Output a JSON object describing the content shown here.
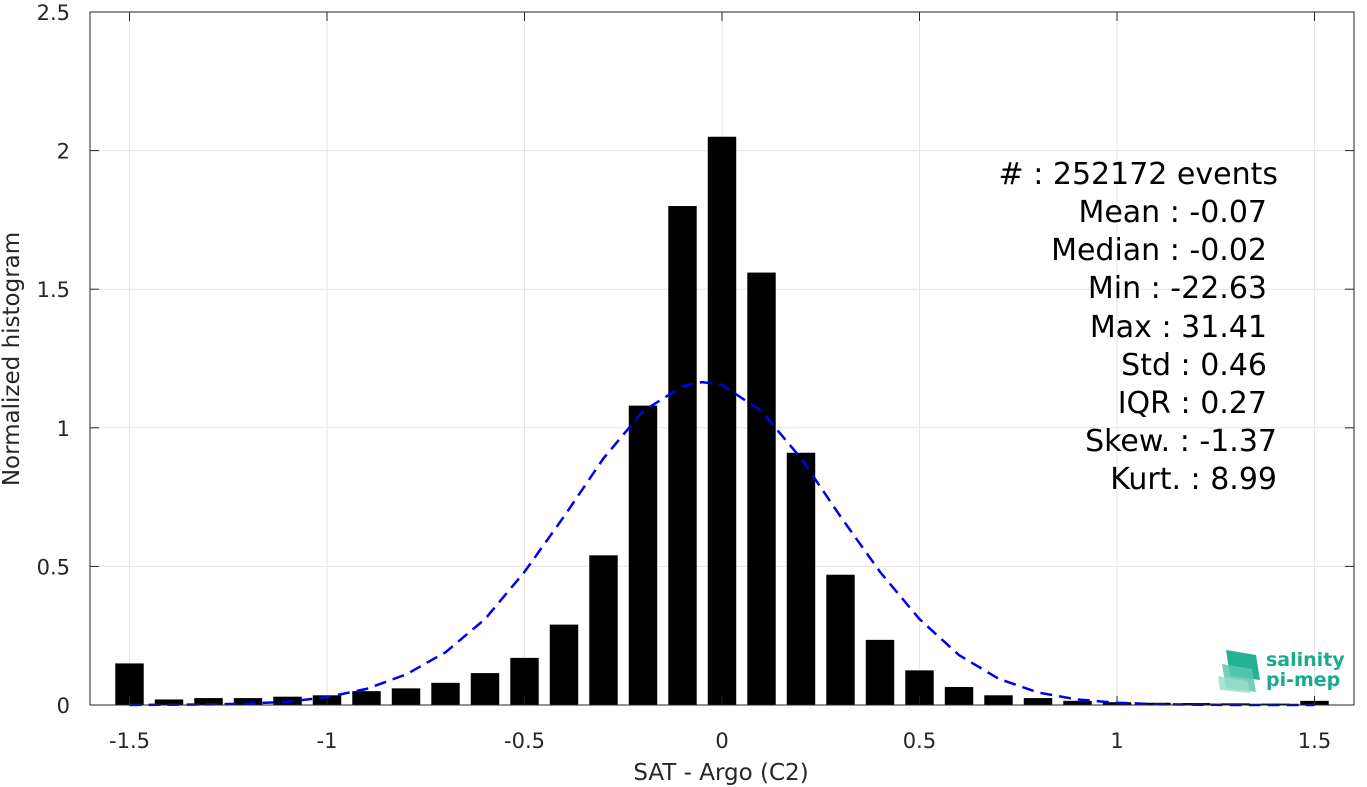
{
  "chart_data": {
    "type": "bar",
    "xlabel": "SAT - Argo (C2)",
    "ylabel": "Normalized histogram",
    "xlim": [
      -1.6,
      1.6
    ],
    "ylim": [
      0,
      2.5
    ],
    "xticks": [
      -1.5,
      -1,
      -0.5,
      0,
      0.5,
      1,
      1.5
    ],
    "xtick_labels": [
      "-1.5",
      "-1",
      "-0.5",
      "0",
      "0.5",
      "1",
      "1.5"
    ],
    "yticks": [
      0,
      0.5,
      1,
      1.5,
      2,
      2.5
    ],
    "ytick_labels": [
      "0",
      "0.5",
      "1",
      "1.5",
      "2",
      "2.5"
    ],
    "grid": true,
    "bin_width": 0.1,
    "series": [
      {
        "type": "bar",
        "color": "#000000",
        "x": [
          -1.5,
          -1.4,
          -1.3,
          -1.2,
          -1.1,
          -1.0,
          -0.9,
          -0.8,
          -0.7,
          -0.6,
          -0.5,
          -0.4,
          -0.3,
          -0.2,
          -0.1,
          0.0,
          0.1,
          0.2,
          0.3,
          0.4,
          0.5,
          0.6,
          0.7,
          0.8,
          0.9,
          1.0,
          1.1,
          1.2,
          1.3,
          1.4,
          1.5
        ],
        "values": [
          0.15,
          0.02,
          0.025,
          0.025,
          0.03,
          0.035,
          0.05,
          0.06,
          0.08,
          0.115,
          0.17,
          0.29,
          0.54,
          1.08,
          1.8,
          2.05,
          1.56,
          0.91,
          0.47,
          0.235,
          0.125,
          0.065,
          0.035,
          0.025,
          0.015,
          0.01,
          0.008,
          0.007,
          0.006,
          0.005,
          0.015
        ]
      },
      {
        "type": "line",
        "style": "dashed",
        "color": "#0000ee",
        "x": [
          -1.5,
          -1.4,
          -1.3,
          -1.2,
          -1.1,
          -1.0,
          -0.9,
          -0.8,
          -0.7,
          -0.6,
          -0.5,
          -0.4,
          -0.3,
          -0.2,
          -0.1,
          -0.05,
          0.0,
          0.1,
          0.2,
          0.3,
          0.4,
          0.5,
          0.6,
          0.7,
          0.8,
          0.9,
          1.0,
          1.1,
          1.2,
          1.3,
          1.4,
          1.5
        ],
        "values": [
          0.0,
          0.001,
          0.002,
          0.005,
          0.012,
          0.028,
          0.058,
          0.11,
          0.19,
          0.31,
          0.48,
          0.68,
          0.89,
          1.06,
          1.15,
          1.165,
          1.155,
          1.06,
          0.89,
          0.68,
          0.48,
          0.31,
          0.18,
          0.095,
          0.045,
          0.02,
          0.008,
          0.003,
          0.001,
          0.0,
          0.0,
          0.0
        ]
      }
    ],
    "stats_box": [
      "#  : 252172 events",
      "Mean : -0.07",
      "Median : -0.02",
      "Min : -22.63",
      "Max : 31.41",
      "Std : 0.46",
      "IQR : 0.27",
      "Skew. : -1.37",
      "Kurt. : 8.99"
    ]
  },
  "logo": {
    "line1": "salinity",
    "line2": "pi-mep",
    "color": "#1aaa8c"
  }
}
